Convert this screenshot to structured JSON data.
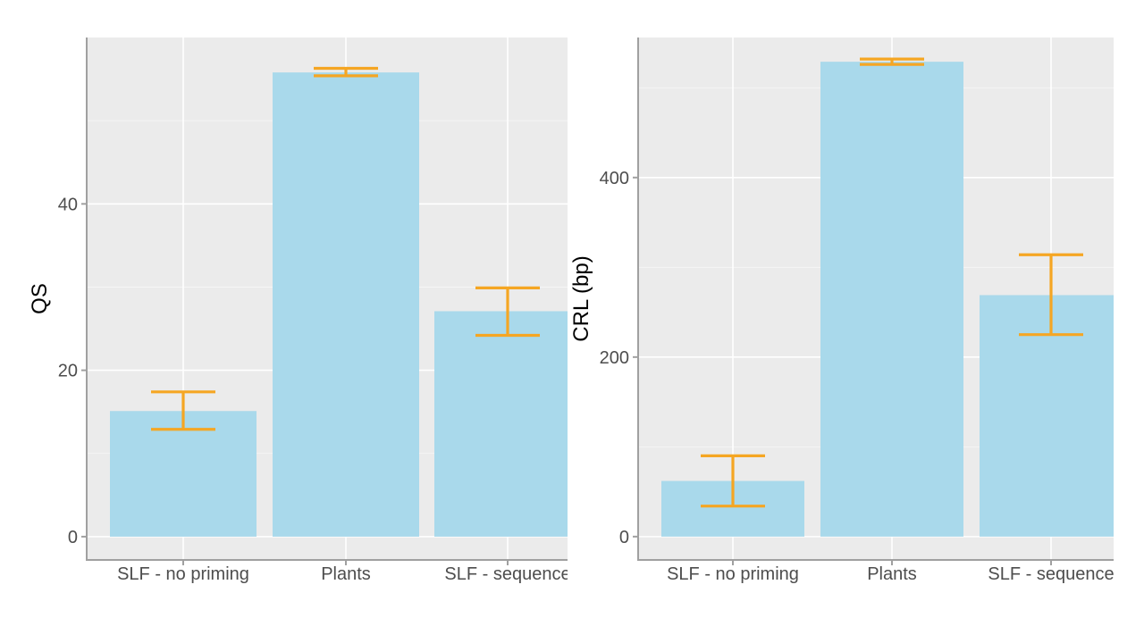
{
  "colors": {
    "panel_bg": "#ebebeb",
    "grid_major": "#ffffff",
    "grid_minor": "#f5f5f5",
    "bar_fill": "#a6d8ea",
    "error_bar": "#f5a623",
    "axis_line": "#a0a0a0"
  },
  "chart_data": [
    {
      "type": "bar",
      "categories": [
        "SLF - no priming",
        "Plants",
        "SLF - sequence"
      ],
      "values": [
        15.1,
        55.8,
        27.1
      ],
      "error_low": [
        12.9,
        55.4,
        24.2
      ],
      "error_high": [
        17.4,
        56.3,
        29.9
      ],
      "xlabel": "",
      "ylabel": "QS",
      "yticks": [
        0,
        20,
        40
      ],
      "ylim": [
        -2.8,
        60.0
      ],
      "grid": true
    },
    {
      "type": "bar",
      "categories": [
        "SLF - no priming",
        "Plants",
        "SLF - sequence"
      ],
      "values": [
        62,
        529,
        269
      ],
      "error_low": [
        34,
        526,
        225
      ],
      "error_high": [
        90,
        532,
        314
      ],
      "xlabel": "",
      "ylabel": "CRL (bp)",
      "yticks": [
        0,
        200,
        400
      ],
      "ylim": [
        -26,
        556
      ],
      "grid": true
    }
  ]
}
